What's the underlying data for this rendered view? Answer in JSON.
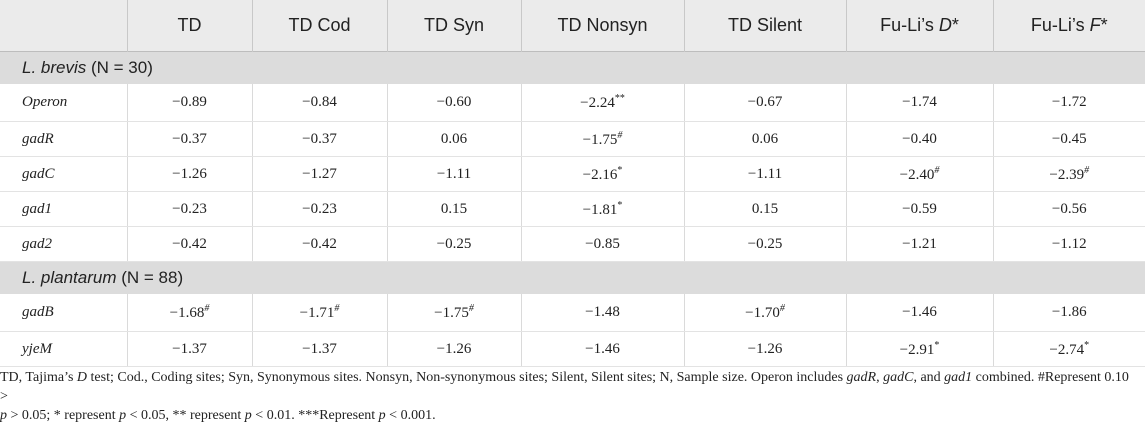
{
  "table": {
    "headers": [
      "",
      "TD",
      "TD Cod",
      "TD Syn",
      "TD Nonsyn",
      "TD Silent",
      "Fu-Li’s D*",
      "Fu-Li’s F*"
    ],
    "sections": [
      {
        "species": "L. brevis",
        "sample": "(N = 30)",
        "rows": [
          {
            "gene": "Operon",
            "values": [
              "−0.89",
              "−0.84",
              "−0.60",
              "−2.24**",
              "−0.67",
              "−1.74",
              "−1.72"
            ]
          },
          {
            "gene": "gadR",
            "values": [
              "−0.37",
              "−0.37",
              "0.06",
              "−1.75#",
              "0.06",
              "−0.40",
              "−0.45"
            ]
          },
          {
            "gene": "gadC",
            "values": [
              "−1.26",
              "−1.27",
              "−1.11",
              "−2.16*",
              "−1.11",
              "−2.40#",
              "−2.39#"
            ]
          },
          {
            "gene": "gad1",
            "values": [
              "−0.23",
              "−0.23",
              "0.15",
              "−1.81*",
              "0.15",
              "−0.59",
              "−0.56"
            ]
          },
          {
            "gene": "gad2",
            "values": [
              "−0.42",
              "−0.42",
              "−0.25",
              "−0.85",
              "−0.25",
              "−1.21",
              "−1.12"
            ]
          }
        ]
      },
      {
        "species": "L. plantarum",
        "sample": "(N = 88)",
        "rows": [
          {
            "gene": "gadB",
            "values": [
              "−1.68#",
              "−1.71#",
              "−1.75#",
              "−1.48",
              "−1.70#",
              "−1.46",
              "−1.86"
            ]
          },
          {
            "gene": "yjeM",
            "values": [
              "−1.37",
              "−1.37",
              "−1.26",
              "−1.46",
              "−1.26",
              "−2.91*",
              "−2.74*"
            ]
          }
        ]
      }
    ]
  },
  "footnote": {
    "line1": "TD, Tajima’s D test; Cod., Coding sites; Syn, Synonymous sites. Nonsyn, Non-synonymous sites; Silent, Silent sites; N, Sample size. Operon includes gadR, gadC, and gad1 combined. #Represent 0.10 >",
    "line2": "p > 0.05; * represent p < 0.05, ** represent p < 0.01. ***Represent p < 0.001."
  }
}
